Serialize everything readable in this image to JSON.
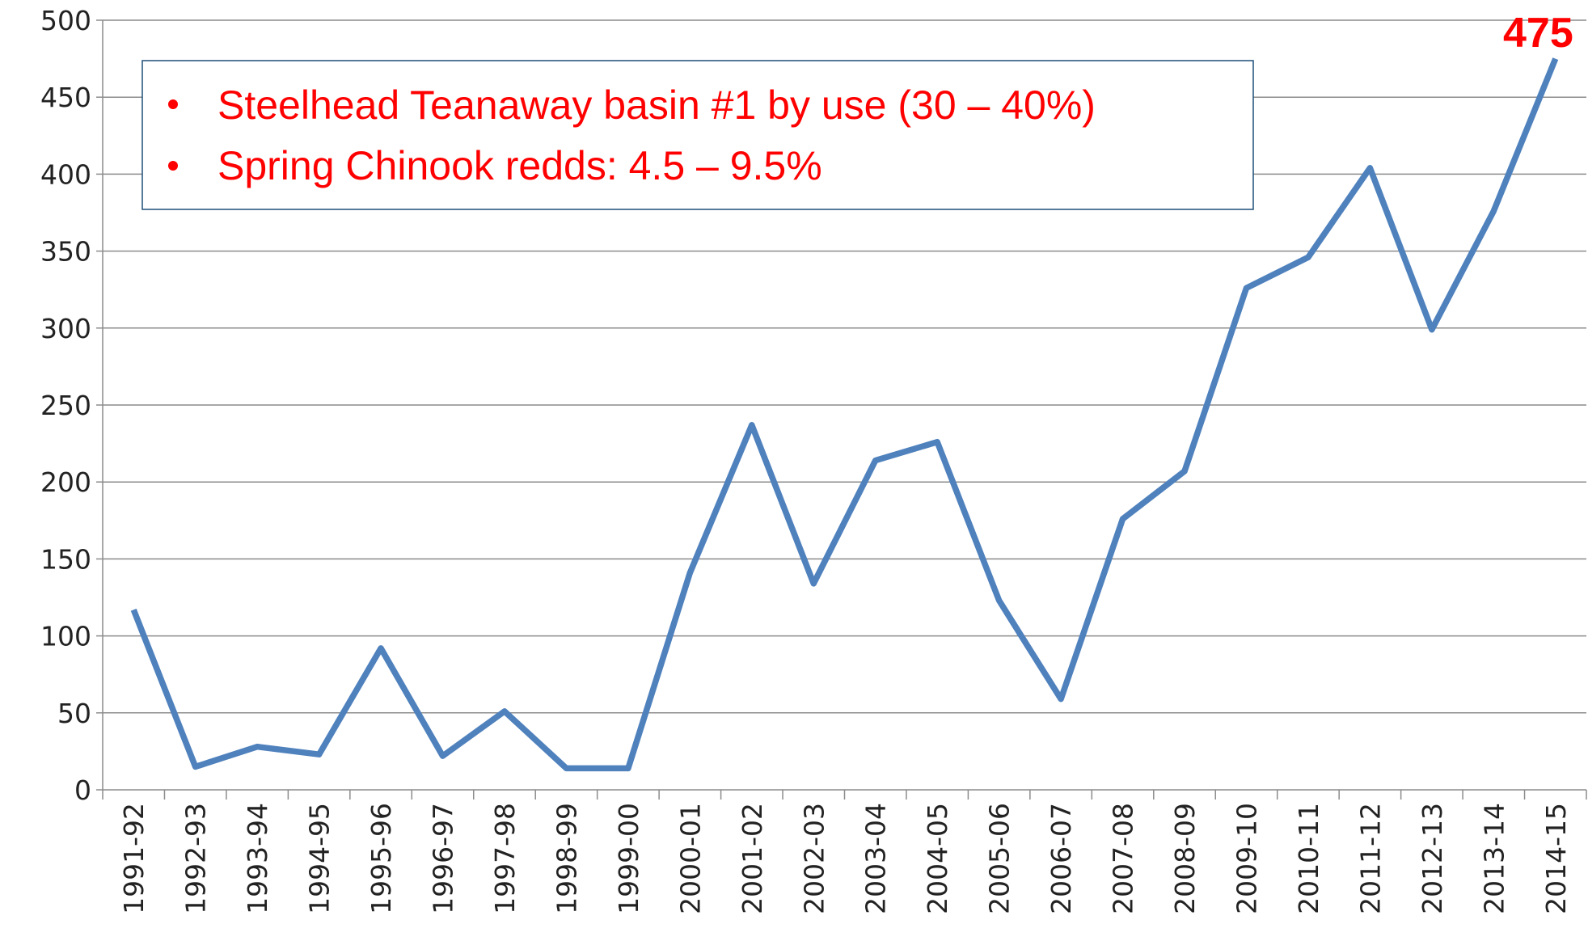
{
  "chart_data": {
    "type": "line",
    "categories": [
      "1991-92",
      "1992-93",
      "1993-94",
      "1994-95",
      "1995-96",
      "1996-97",
      "1997-98",
      "1998-99",
      "1999-00",
      "2000-01",
      "2001-02",
      "2002-03",
      "2003-04",
      "2004-05",
      "2005-06",
      "2006-07",
      "2007-08",
      "2008-09",
      "2009-10",
      "2010-11",
      "2011-12",
      "2012-13",
      "2013-14",
      "2014-15"
    ],
    "series": [
      {
        "name": "Redds",
        "color": "#4f81bd",
        "values": [
          117,
          15,
          28,
          23,
          92,
          22,
          51,
          14,
          14,
          141,
          237,
          134,
          214,
          226,
          123,
          59,
          176,
          207,
          326,
          346,
          404,
          299,
          376,
          475
        ]
      }
    ],
    "ylim": [
      0,
      500
    ],
    "yticks": [
      0,
      50,
      100,
      150,
      200,
      250,
      300,
      350,
      400,
      450,
      500
    ],
    "grid": true,
    "annotations": [
      "Steelhead Teanaway basin #1 by use (30 – 40%)",
      "Spring Chinook redds: 4.5 – 9.5%"
    ]
  }
}
